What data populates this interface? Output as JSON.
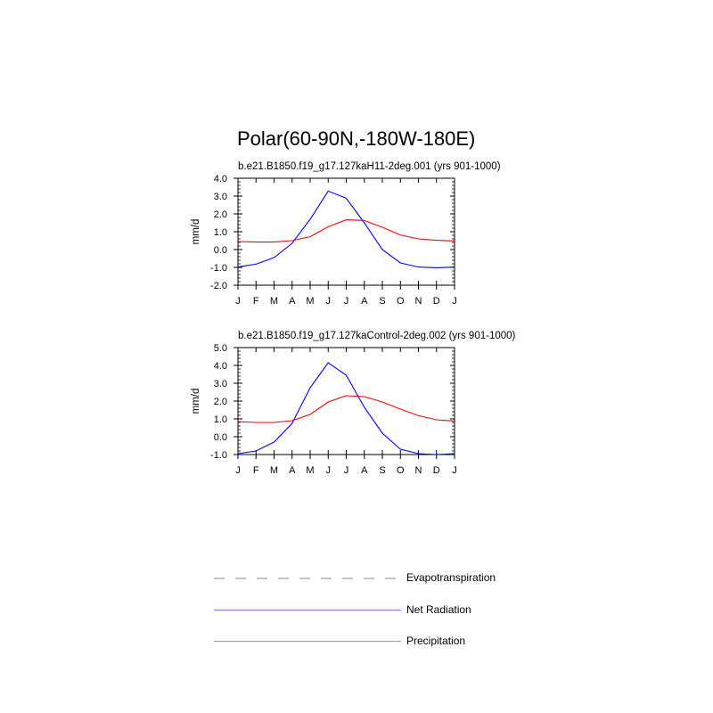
{
  "title": "Polar(60-90N,-180W-180E)",
  "chart_data": [
    {
      "type": "line",
      "title": "b.e21.B1850.f19_g17.127kaH11-2deg.001 (yrs 901-1000)",
      "xlabel": "",
      "ylabel": "mm/d",
      "categories": [
        "J",
        "F",
        "M",
        "A",
        "M",
        "J",
        "J",
        "A",
        "S",
        "O",
        "N",
        "D",
        "J"
      ],
      "ylim": [
        -2.0,
        4.0
      ],
      "yticks": [
        "4.0",
        "3.0",
        "2.0",
        "1.0",
        "0.0",
        "-1.0",
        "-2.0"
      ],
      "series": [
        {
          "name": "Net Radiation",
          "color": "#0000ff",
          "values": [
            -0.98,
            -0.82,
            -0.45,
            0.35,
            1.7,
            3.28,
            2.88,
            1.5,
            0.0,
            -0.75,
            -0.98,
            -1.02,
            -0.98
          ]
        },
        {
          "name": "Precipitation",
          "color": "#ff0000",
          "values": [
            0.45,
            0.42,
            0.42,
            0.5,
            0.72,
            1.28,
            1.67,
            1.63,
            1.25,
            0.82,
            0.6,
            0.52,
            0.48
          ]
        }
      ]
    },
    {
      "type": "line",
      "title": "b.e21.B1850.f19_g17.127kaControl-2deg.002 (yrs 901-1000)",
      "xlabel": "",
      "ylabel": "mm/d",
      "categories": [
        "J",
        "F",
        "M",
        "A",
        "M",
        "J",
        "J",
        "A",
        "S",
        "O",
        "N",
        "D",
        "J"
      ],
      "ylim": [
        -1.0,
        5.0
      ],
      "yticks": [
        "5.0",
        "4.0",
        "3.0",
        "2.0",
        "1.0",
        "0.0",
        "-1.0"
      ],
      "series": [
        {
          "name": "Net Radiation",
          "color": "#0000ff",
          "values": [
            -0.95,
            -0.8,
            -0.3,
            0.75,
            2.75,
            4.15,
            3.45,
            1.65,
            0.2,
            -0.7,
            -0.95,
            -1.0,
            -0.95
          ]
        },
        {
          "name": "Precipitation",
          "color": "#ff0000",
          "values": [
            0.85,
            0.8,
            0.8,
            0.9,
            1.25,
            1.95,
            2.3,
            2.25,
            1.95,
            1.55,
            1.18,
            0.95,
            0.88
          ]
        }
      ]
    }
  ],
  "legend": [
    {
      "label": "Evapotranspiration",
      "color": "#a0a0a0",
      "style": "dashed"
    },
    {
      "label": "Net Radiation",
      "color": "#0000ff",
      "style": "solid"
    },
    {
      "label": "Precipitation",
      "color": "#ff0000",
      "style": "solid"
    }
  ]
}
